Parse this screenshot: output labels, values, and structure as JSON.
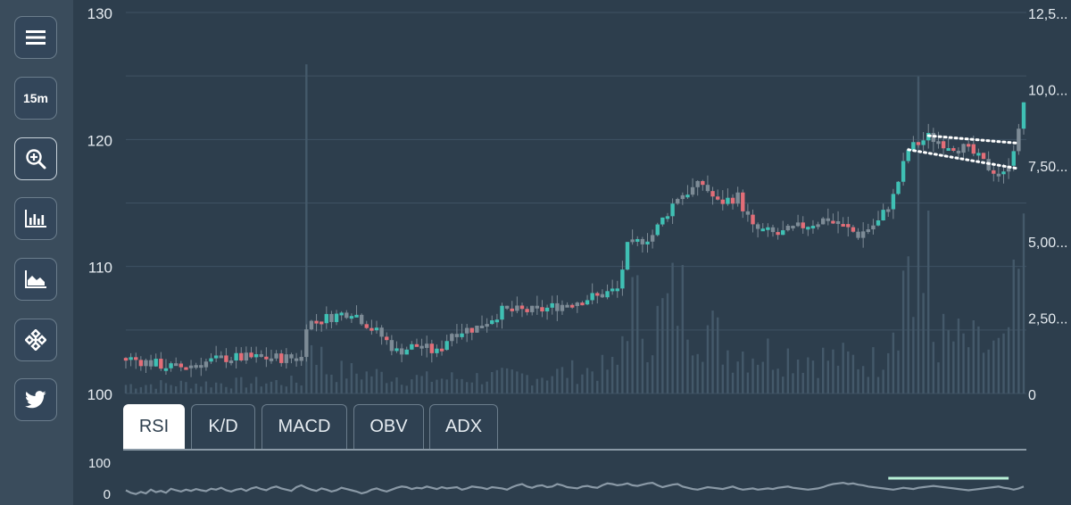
{
  "sidebar": {
    "items": [
      {
        "name": "menu",
        "icon": "menu-icon"
      },
      {
        "name": "timeframe",
        "label": "15m"
      },
      {
        "name": "zoom",
        "icon": "zoom-in-icon"
      },
      {
        "name": "bar-chart",
        "icon": "bar-chart-icon"
      },
      {
        "name": "area-chart",
        "icon": "area-chart-icon"
      },
      {
        "name": "binance",
        "icon": "binance-logo-icon"
      },
      {
        "name": "twitter",
        "icon": "twitter-icon"
      }
    ]
  },
  "tabs": [
    {
      "label": "RSI",
      "active": true
    },
    {
      "label": "K/D",
      "active": false
    },
    {
      "label": "MACD",
      "active": false
    },
    {
      "label": "OBV",
      "active": false
    },
    {
      "label": "ADX",
      "active": false
    }
  ],
  "colors": {
    "background": "#2d3e4d",
    "sidebar": "#3a4c5c",
    "up": "#3fc0b4",
    "down": "#e36e78",
    "neutral": "#7d8b96",
    "volume": "#44596a",
    "rsi_line": "#8a99a6",
    "rsi_highlight": "#b8f0d6"
  },
  "chart_data": [
    {
      "type": "candlestick",
      "title": "",
      "xlabel": "",
      "ylabel": "",
      "price_axis": {
        "ticks": [
          "100",
          "110",
          "120",
          "130"
        ],
        "ylim": [
          100,
          130
        ]
      },
      "volume_axis": {
        "ticks": [
          "0",
          "2,50...",
          "5,00...",
          "7,50...",
          "10,0...",
          "12,5..."
        ],
        "ylim": [
          0,
          12.5
        ]
      },
      "grid": true,
      "price_path": [
        [
          0,
          102.8
        ],
        [
          10,
          102.0
        ],
        [
          20,
          102.8
        ],
        [
          30,
          102.8
        ],
        [
          35,
          102.8
        ],
        [
          36,
          105.5
        ],
        [
          45,
          106.5
        ],
        [
          48,
          105.5
        ],
        [
          51,
          104.5
        ],
        [
          54,
          103.3
        ],
        [
          58,
          103.8
        ],
        [
          62,
          103.2
        ],
        [
          65,
          104.8
        ],
        [
          70,
          105.2
        ],
        [
          75,
          106.5
        ],
        [
          82,
          106.5
        ],
        [
          90,
          107.3
        ],
        [
          95,
          107.8
        ],
        [
          98,
          108.2
        ],
        [
          100,
          111.5
        ],
        [
          105,
          112.5
        ],
        [
          110,
          115.5
        ],
        [
          115,
          116.5
        ],
        [
          118,
          115.0
        ],
        [
          122,
          115.5
        ],
        [
          125,
          113.0
        ],
        [
          130,
          112.5
        ],
        [
          135,
          113.2
        ],
        [
          140,
          113.8
        ],
        [
          146,
          112.5
        ],
        [
          150,
          113.5
        ],
        [
          153,
          115.5
        ],
        [
          156,
          119.2
        ],
        [
          160,
          120.2
        ],
        [
          164,
          119.6
        ],
        [
          168,
          119.2
        ],
        [
          172,
          117.8
        ],
        [
          175,
          117.2
        ],
        [
          178,
          120.5
        ],
        [
          179,
          123.0
        ]
      ],
      "volume_path": [
        [
          0,
          0.3
        ],
        [
          35,
          0.4
        ],
        [
          36,
          2.5
        ],
        [
          40,
          0.8
        ],
        [
          60,
          0.5
        ],
        [
          80,
          0.6
        ],
        [
          98,
          0.9
        ],
        [
          100,
          3.2
        ],
        [
          105,
          2.2
        ],
        [
          110,
          3.4
        ],
        [
          120,
          1.5
        ],
        [
          130,
          1.4
        ],
        [
          140,
          1.2
        ],
        [
          150,
          1.1
        ],
        [
          155,
          3.8
        ],
        [
          160,
          2.0
        ],
        [
          165,
          1.8
        ],
        [
          170,
          1.6
        ],
        [
          175,
          1.4
        ],
        [
          179,
          4.5
        ]
      ],
      "volume_spikes": [
        [
          36,
          10.8
        ],
        [
          156,
          4.5
        ],
        [
          158,
          10.4
        ],
        [
          160,
          6.0
        ]
      ],
      "channel_lines": [
        {
          "from": [
            160,
            120.3
          ],
          "to": [
            178,
            119.7
          ]
        },
        {
          "from": [
            156,
            119.2
          ],
          "to": [
            178,
            117.7
          ]
        }
      ]
    },
    {
      "type": "line",
      "name": "RSI",
      "ticks": [
        "0",
        "100"
      ],
      "ylim": [
        0,
        100
      ],
      "values": [
        50,
        42,
        38,
        45,
        40,
        52,
        44,
        48,
        42,
        55,
        50,
        46,
        52,
        48,
        54,
        50,
        47,
        55,
        52,
        58,
        50,
        46,
        52,
        55,
        48,
        56,
        60,
        54,
        50,
        58,
        62,
        56,
        52,
        48,
        60,
        66,
        58,
        52,
        48,
        56,
        52,
        46,
        50,
        58,
        54,
        50,
        46,
        40,
        44,
        52,
        56,
        50,
        46,
        52,
        58,
        62,
        60,
        54,
        58,
        56,
        62,
        58,
        54,
        60,
        56,
        58,
        60,
        52,
        56,
        62,
        60,
        58,
        54,
        60,
        58,
        56,
        52,
        60,
        66,
        70,
        62,
        58,
        64,
        66,
        60,
        62,
        70,
        66,
        60,
        58,
        56,
        62,
        64,
        60,
        58,
        66,
        72,
        70,
        66,
        68,
        72,
        66,
        64,
        68,
        72,
        74,
        66,
        60,
        64,
        68,
        70,
        62,
        58,
        54,
        52,
        56,
        60,
        58,
        56,
        54,
        58,
        62,
        56,
        52,
        54,
        56,
        52,
        54,
        56,
        54,
        58,
        60,
        62,
        58,
        56,
        54,
        52,
        54,
        56,
        60,
        66,
        70,
        72,
        74,
        70,
        72,
        68,
        66,
        62,
        60,
        58,
        56,
        54,
        52,
        55,
        58,
        56,
        54,
        58,
        60,
        62,
        64,
        62,
        60,
        58,
        56,
        54,
        52,
        50,
        52,
        54,
        56,
        58,
        60,
        62,
        58,
        56,
        52,
        56,
        62
      ]
    }
  ]
}
